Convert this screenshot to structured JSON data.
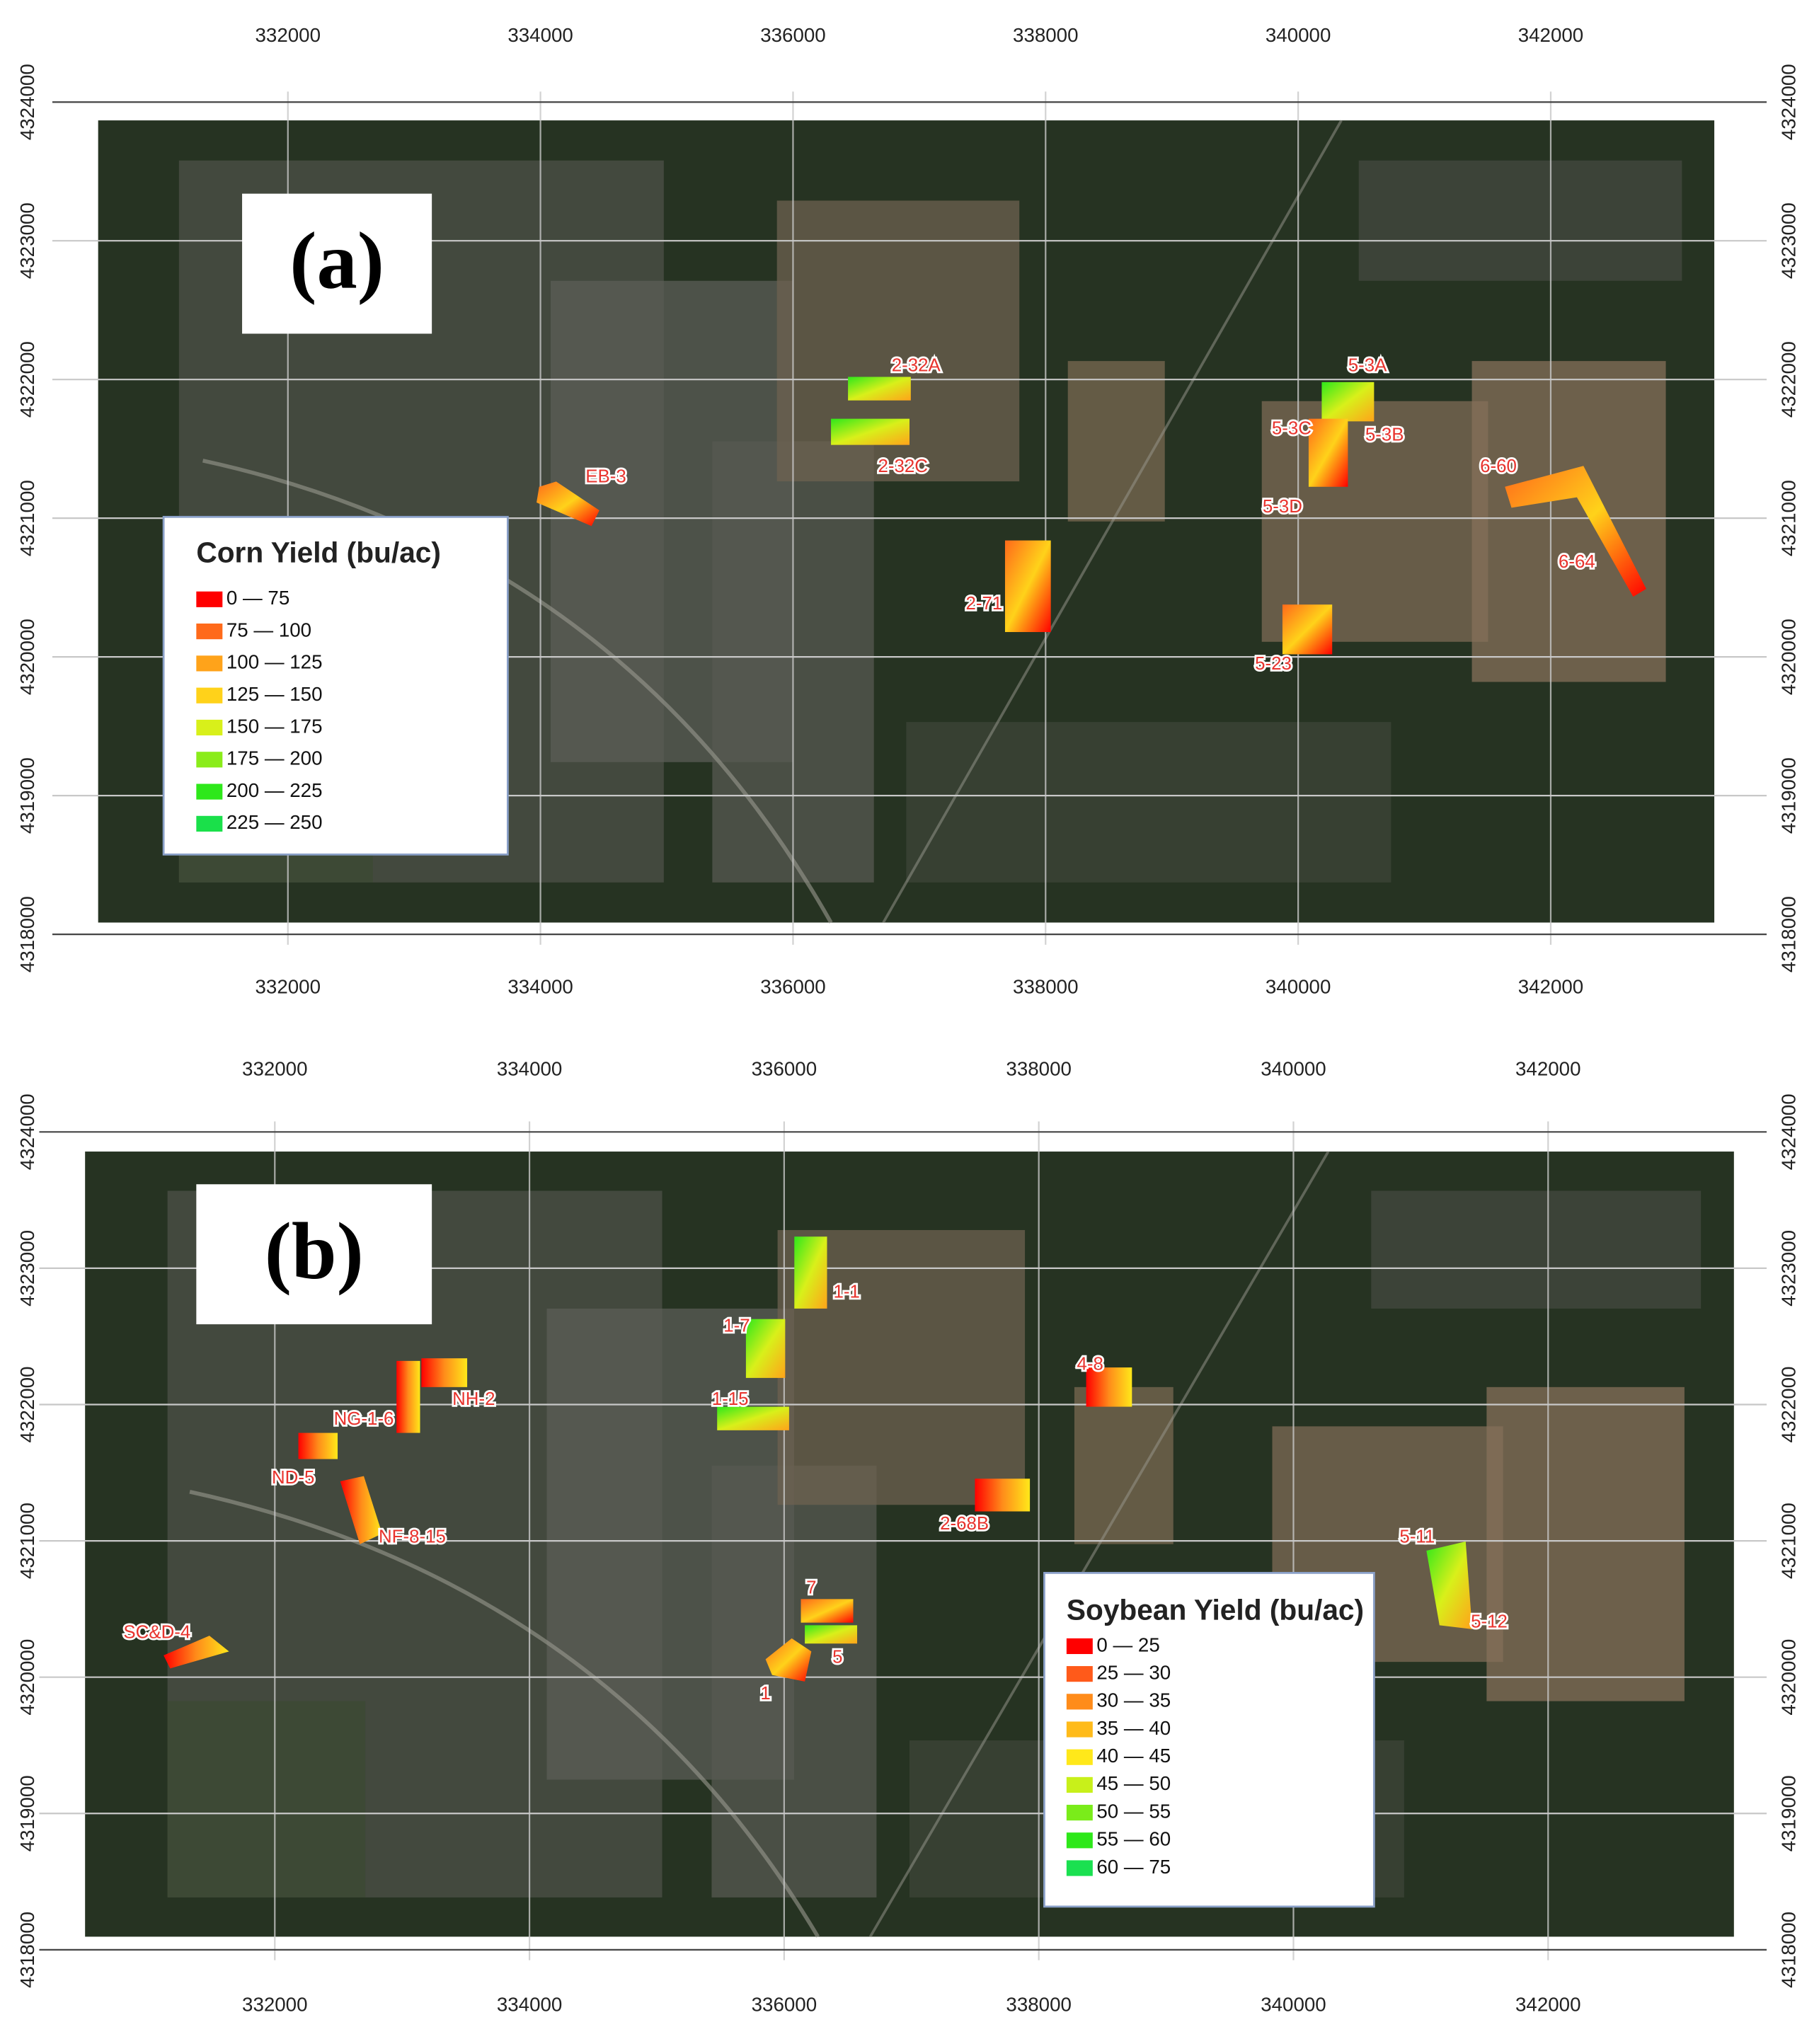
{
  "panels": [
    {
      "label": "(a)",
      "x_ticks": [
        332000,
        334000,
        336000,
        338000,
        340000,
        342000
      ],
      "y_ticks": [
        4324000,
        4323000,
        4322000,
        4321000,
        4320000,
        4319000,
        4318000
      ],
      "legend": {
        "title": "Corn Yield (bu/ac)",
        "entries": [
          {
            "label": "0 — 75",
            "color": "#ff0000"
          },
          {
            "label": "75 — 100",
            "color": "#ff6a1a"
          },
          {
            "label": "100 — 125",
            "color": "#ffa31a"
          },
          {
            "label": "125 — 150",
            "color": "#ffd21a"
          },
          {
            "label": "150 — 175",
            "color": "#d8f01a"
          },
          {
            "label": "175 — 200",
            "color": "#8aec1a"
          },
          {
            "label": "200 — 225",
            "color": "#2ee81a"
          },
          {
            "label": "225 — 250",
            "color": "#1ae04a"
          }
        ]
      },
      "fields": [
        "2-32A",
        "2-32C",
        "EB-3",
        "2-71",
        "5-3A",
        "5-3C",
        "5-3B",
        "5-3D",
        "6-60",
        "6-64",
        "5-23"
      ]
    },
    {
      "label": "(b)",
      "x_ticks": [
        332000,
        334000,
        336000,
        338000,
        340000,
        342000
      ],
      "y_ticks": [
        4324000,
        4323000,
        4322000,
        4321000,
        4320000,
        4319000,
        4318000
      ],
      "legend": {
        "title": "Soybean Yield (bu/ac)",
        "entries": [
          {
            "label": "0 — 25",
            "color": "#ff0000"
          },
          {
            "label": "25 — 30",
            "color": "#ff5a1a"
          },
          {
            "label": "30 — 35",
            "color": "#ff8c1a"
          },
          {
            "label": "35 — 40",
            "color": "#ffbb1a"
          },
          {
            "label": "40 — 45",
            "color": "#ffe81a"
          },
          {
            "label": "45 — 50",
            "color": "#c8f01a"
          },
          {
            "label": "50 — 55",
            "color": "#7aec1a"
          },
          {
            "label": "55 — 60",
            "color": "#2ee81a"
          },
          {
            "label": "60 — 75",
            "color": "#1ae050"
          }
        ]
      },
      "fields": [
        "1-1",
        "1-7",
        "1-15",
        "NH-2",
        "NG-1-6",
        "ND-5",
        "NF-8-15",
        "2-68B",
        "4-8",
        "7",
        "5",
        "1",
        "SC&D-4",
        "5-11",
        "5-12"
      ]
    }
  ]
}
